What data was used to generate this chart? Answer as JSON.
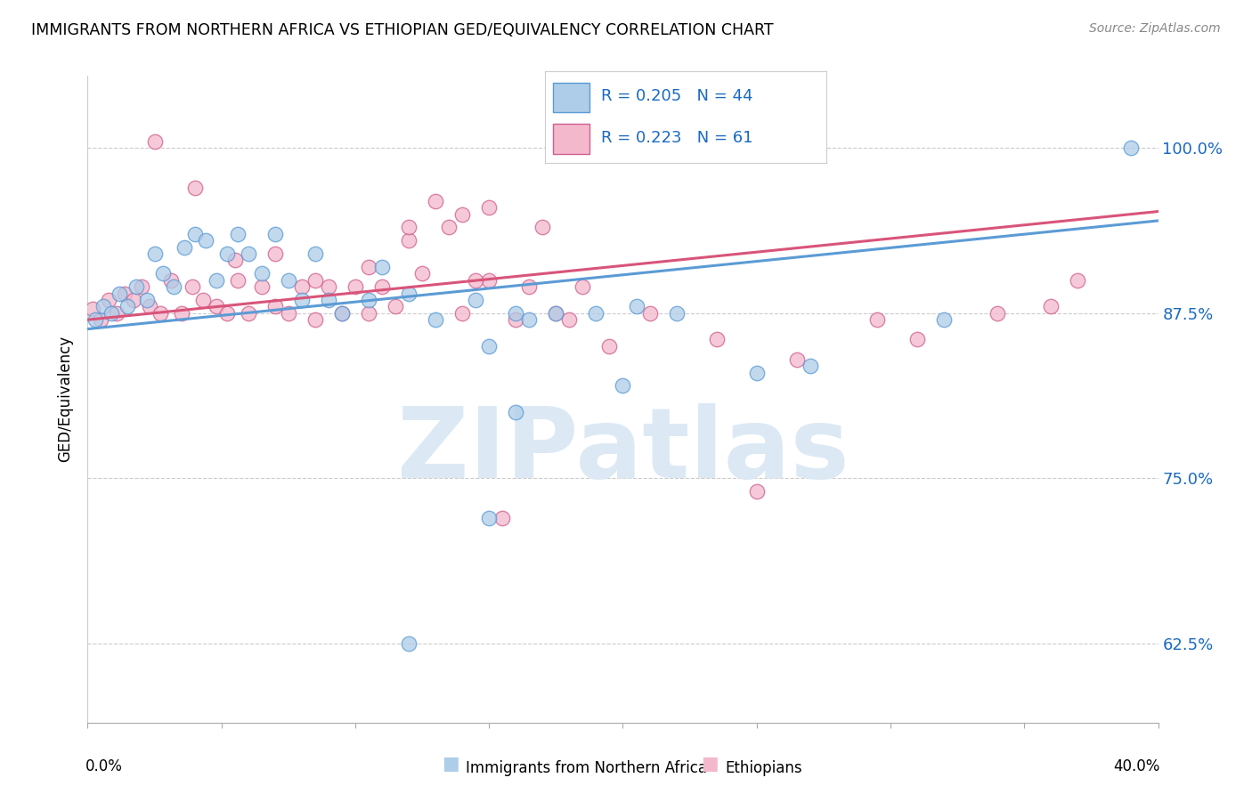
{
  "title": "IMMIGRANTS FROM NORTHERN AFRICA VS ETHIOPIAN GED/EQUIVALENCY CORRELATION CHART",
  "source": "Source: ZipAtlas.com",
  "ylabel": "GED/Equivalency",
  "ytick_labels": [
    "100.0%",
    "87.5%",
    "75.0%",
    "62.5%"
  ],
  "ytick_vals": [
    1.0,
    0.875,
    0.75,
    0.625
  ],
  "xmin": 0.0,
  "xmax": 0.4,
  "ymin": 0.565,
  "ymax": 1.055,
  "legend_r1": "0.205",
  "legend_n1": "44",
  "legend_r2": "0.223",
  "legend_n2": "61",
  "legend_label1": "Immigrants from Northern Africa",
  "legend_label2": "Ethiopians",
  "blue_color": "#aecde8",
  "blue_edge_color": "#5b9bd5",
  "pink_color": "#f4b8cc",
  "pink_edge_color": "#d06090",
  "blue_line_color": "#5b9bd5",
  "pink_line_color": "#d9547a",
  "text_blue": "#1a6ac0",
  "watermark_color": "#dce9f5",
  "blue_x": [
    0.003,
    0.006,
    0.009,
    0.012,
    0.015,
    0.018,
    0.022,
    0.025,
    0.028,
    0.032,
    0.036,
    0.04,
    0.044,
    0.048,
    0.052,
    0.056,
    0.06,
    0.065,
    0.07,
    0.075,
    0.08,
    0.085,
    0.09,
    0.095,
    0.105,
    0.11,
    0.12,
    0.13,
    0.145,
    0.16,
    0.175,
    0.19,
    0.205,
    0.22,
    0.15,
    0.165,
    0.27,
    0.16,
    0.2,
    0.25,
    0.39,
    0.32,
    0.15,
    0.12
  ],
  "blue_y": [
    0.87,
    0.88,
    0.875,
    0.89,
    0.88,
    0.895,
    0.885,
    0.92,
    0.905,
    0.895,
    0.925,
    0.935,
    0.93,
    0.9,
    0.92,
    0.935,
    0.92,
    0.905,
    0.935,
    0.9,
    0.885,
    0.92,
    0.885,
    0.875,
    0.885,
    0.91,
    0.89,
    0.87,
    0.885,
    0.875,
    0.875,
    0.875,
    0.88,
    0.875,
    0.85,
    0.87,
    0.835,
    0.8,
    0.82,
    0.83,
    1.0,
    0.87,
    0.72,
    0.625
  ],
  "pink_x": [
    0.002,
    0.005,
    0.008,
    0.011,
    0.014,
    0.017,
    0.02,
    0.023,
    0.027,
    0.031,
    0.035,
    0.039,
    0.043,
    0.048,
    0.052,
    0.056,
    0.06,
    0.065,
    0.07,
    0.075,
    0.08,
    0.085,
    0.09,
    0.095,
    0.1,
    0.105,
    0.11,
    0.115,
    0.12,
    0.125,
    0.13,
    0.14,
    0.15,
    0.16,
    0.165,
    0.175,
    0.18,
    0.185,
    0.135,
    0.14,
    0.145,
    0.195,
    0.21,
    0.235,
    0.265,
    0.295,
    0.31,
    0.34,
    0.36,
    0.025,
    0.04,
    0.055,
    0.07,
    0.085,
    0.105,
    0.12,
    0.15,
    0.17,
    0.25,
    0.37,
    0.155
  ],
  "pink_y": [
    0.878,
    0.87,
    0.885,
    0.875,
    0.89,
    0.885,
    0.895,
    0.88,
    0.875,
    0.9,
    0.875,
    0.895,
    0.885,
    0.88,
    0.875,
    0.9,
    0.875,
    0.895,
    0.88,
    0.875,
    0.895,
    0.87,
    0.895,
    0.875,
    0.895,
    0.875,
    0.895,
    0.88,
    0.93,
    0.905,
    0.96,
    0.875,
    0.9,
    0.87,
    0.895,
    0.875,
    0.87,
    0.895,
    0.94,
    0.95,
    0.9,
    0.85,
    0.875,
    0.855,
    0.84,
    0.87,
    0.855,
    0.875,
    0.88,
    1.005,
    0.97,
    0.915,
    0.92,
    0.9,
    0.91,
    0.94,
    0.955,
    0.94,
    0.74,
    0.9,
    0.72
  ]
}
